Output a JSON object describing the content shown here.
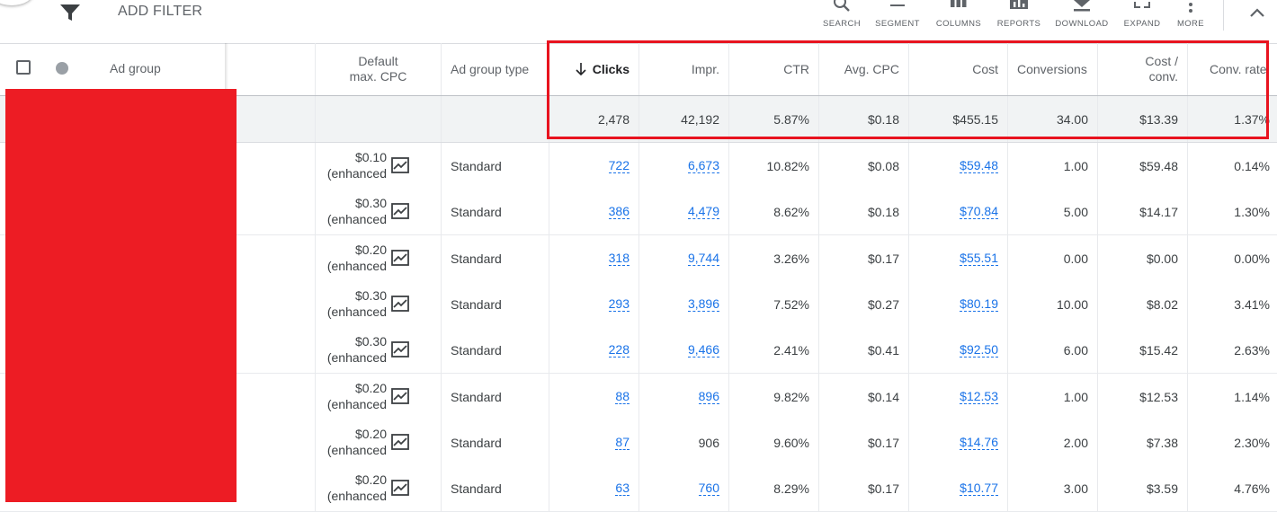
{
  "toolbar": {
    "add_filter": "ADD FILTER",
    "tools": [
      {
        "label": "SEARCH",
        "icon": "search-icon"
      },
      {
        "label": "SEGMENT",
        "icon": "segment-icon"
      },
      {
        "label": "COLUMNS",
        "icon": "columns-icon"
      },
      {
        "label": "REPORTS",
        "icon": "reports-icon"
      },
      {
        "label": "DOWNLOAD",
        "icon": "download-icon"
      },
      {
        "label": "EXPAND",
        "icon": "expand-icon"
      },
      {
        "label": "MORE",
        "icon": "more-vert-icon"
      }
    ]
  },
  "table": {
    "headers": {
      "ad_group": "Ad group",
      "default_cpc_line1": "Default",
      "default_cpc_line2": "max. CPC",
      "ad_group_type": "Ad group type",
      "clicks": "Clicks",
      "impr": "Impr.",
      "ctr": "CTR",
      "avg_cpc": "Avg. CPC",
      "cost": "Cost",
      "conversions": "Conversions",
      "cost_conv_line1": "Cost /",
      "cost_conv_line2": "conv.",
      "conv_rate": "Conv. rate"
    },
    "totals": {
      "clicks": "2,478",
      "impr": "42,192",
      "ctr": "5.87%",
      "avg_cpc": "$0.18",
      "cost": "$455.15",
      "conversions": "34.00",
      "cost_conv": "$13.39",
      "conv_rate": "1.37%"
    },
    "rows": [
      {
        "cpc": "$0.10",
        "cpc_note": "(enhanced",
        "type": "Standard",
        "clicks": "722",
        "impr": "6,673",
        "impr_link": true,
        "ctr": "10.82%",
        "avg_cpc": "$0.08",
        "cost": "$59.48",
        "conversions": "1.00",
        "cost_conv": "$59.48",
        "conv_rate": "0.14%"
      },
      {
        "cpc": "$0.30",
        "cpc_note": "(enhanced",
        "type": "Standard",
        "clicks": "386",
        "impr": "4,479",
        "impr_link": true,
        "ctr": "8.62%",
        "avg_cpc": "$0.18",
        "cost": "$70.84",
        "conversions": "5.00",
        "cost_conv": "$14.17",
        "conv_rate": "1.30%"
      },
      {
        "cpc": "$0.20",
        "cpc_note": "(enhanced",
        "type": "Standard",
        "clicks": "318",
        "impr": "9,744",
        "impr_link": true,
        "ctr": "3.26%",
        "avg_cpc": "$0.17",
        "cost": "$55.51",
        "conversions": "0.00",
        "cost_conv": "$0.00",
        "conv_rate": "0.00%"
      },
      {
        "cpc": "$0.30",
        "cpc_note": "(enhanced",
        "type": "Standard",
        "clicks": "293",
        "impr": "3,896",
        "impr_link": true,
        "ctr": "7.52%",
        "avg_cpc": "$0.27",
        "cost": "$80.19",
        "conversions": "10.00",
        "cost_conv": "$8.02",
        "conv_rate": "3.41%"
      },
      {
        "cpc": "$0.30",
        "cpc_note": "(enhanced",
        "type": "Standard",
        "clicks": "228",
        "impr": "9,466",
        "impr_link": true,
        "ctr": "2.41%",
        "avg_cpc": "$0.41",
        "cost": "$92.50",
        "conversions": "6.00",
        "cost_conv": "$15.42",
        "conv_rate": "2.63%"
      },
      {
        "cpc": "$0.20",
        "cpc_note": "(enhanced",
        "type": "Standard",
        "clicks": "88",
        "impr": "896",
        "impr_link": true,
        "ctr": "9.82%",
        "avg_cpc": "$0.14",
        "cost": "$12.53",
        "conversions": "1.00",
        "cost_conv": "$12.53",
        "conv_rate": "1.14%"
      },
      {
        "cpc": "$0.20",
        "cpc_note": "(enhanced",
        "type": "Standard",
        "clicks": "87",
        "impr": "906",
        "impr_link": false,
        "ctr": "9.60%",
        "avg_cpc": "$0.17",
        "cost": "$14.76",
        "conversions": "2.00",
        "cost_conv": "$7.38",
        "conv_rate": "2.30%"
      },
      {
        "cpc": "$0.20",
        "cpc_note": "(enhanced",
        "type": "Standard",
        "clicks": "63",
        "impr": "760",
        "impr_link": true,
        "ctr": "8.29%",
        "avg_cpc": "$0.17",
        "cost": "$10.77",
        "conversions": "3.00",
        "cost_conv": "$3.59",
        "conv_rate": "4.76%"
      }
    ]
  },
  "colors": {
    "link": "#1a73e8",
    "redaction": "#ed1c24",
    "highlight": "#e8131f"
  }
}
